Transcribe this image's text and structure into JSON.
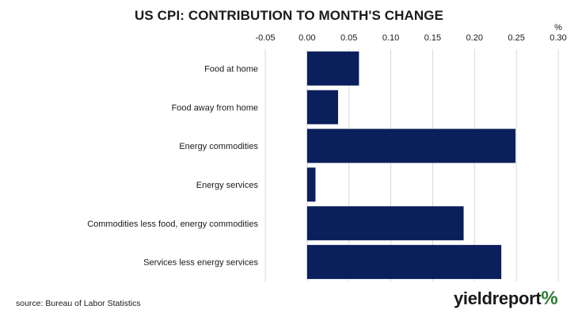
{
  "chart_data": {
    "type": "bar",
    "orientation": "horizontal",
    "title": "US CPI: CONTRIBUTION TO MONTH'S CHANGE",
    "unit_label": "%",
    "categories": [
      "Food at home",
      "Food away from home",
      "Energy commodities",
      "Energy services",
      "Commodities less food, energy commodities",
      "Services less energy services"
    ],
    "values": [
      0.062,
      0.037,
      0.249,
      0.01,
      0.187,
      0.232
    ],
    "xlim": [
      -0.05,
      0.3
    ],
    "x_ticks": [
      "-0.05",
      "0.00",
      "0.05",
      "0.10",
      "0.15",
      "0.20",
      "0.25",
      "0.30"
    ],
    "x_tick_values": [
      -0.05,
      0.0,
      0.05,
      0.1,
      0.15,
      0.2,
      0.25,
      0.3
    ],
    "axis_position": "top",
    "grid": true,
    "bar_color": "#0b1f5c",
    "grid_color": "#d9d9d9"
  },
  "footer": {
    "source": "source: Bureau of Labor Statistics",
    "logo_text": "yieldreport",
    "logo_symbol": "%"
  }
}
